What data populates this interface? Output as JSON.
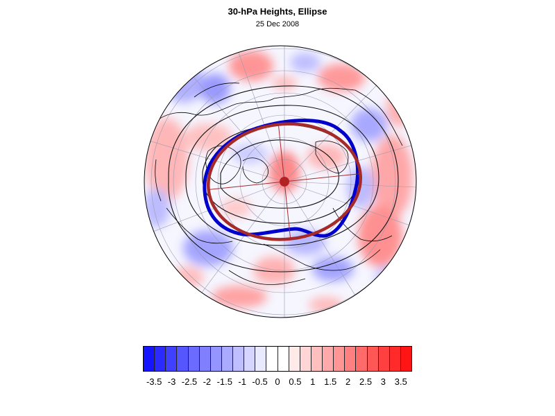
{
  "title": "30-hPa Heights, Ellipse",
  "subtitle": "25 Dec 2008",
  "colorbar": {
    "tick_labels": [
      "-3.5",
      "-3",
      "-2.5",
      "-2",
      "-1.5",
      "-1",
      "-0.5",
      "0",
      "0.5",
      "1",
      "1.5",
      "2",
      "2.5",
      "3",
      "3.5"
    ],
    "colors": [
      "#1515ff",
      "#2b2bff",
      "#4040ff",
      "#5656ff",
      "#6b6bff",
      "#8080ff",
      "#9595ff",
      "#aaaaff",
      "#bfbfff",
      "#d5d5ff",
      "#eaeaff",
      "#ffffff",
      "#ffffff",
      "#ffeaea",
      "#ffd5d5",
      "#ffbfbf",
      "#ffaaaa",
      "#ff9595",
      "#ff8080",
      "#ff6b6b",
      "#ff5656",
      "#ff4040",
      "#ff2b2b",
      "#ff1515"
    ]
  },
  "map": {
    "projection": "orthographic-north-polar",
    "shading": "height anomaly",
    "ellipse_color": "#a52a2a",
    "observed_contour_color": "#0000cc"
  }
}
